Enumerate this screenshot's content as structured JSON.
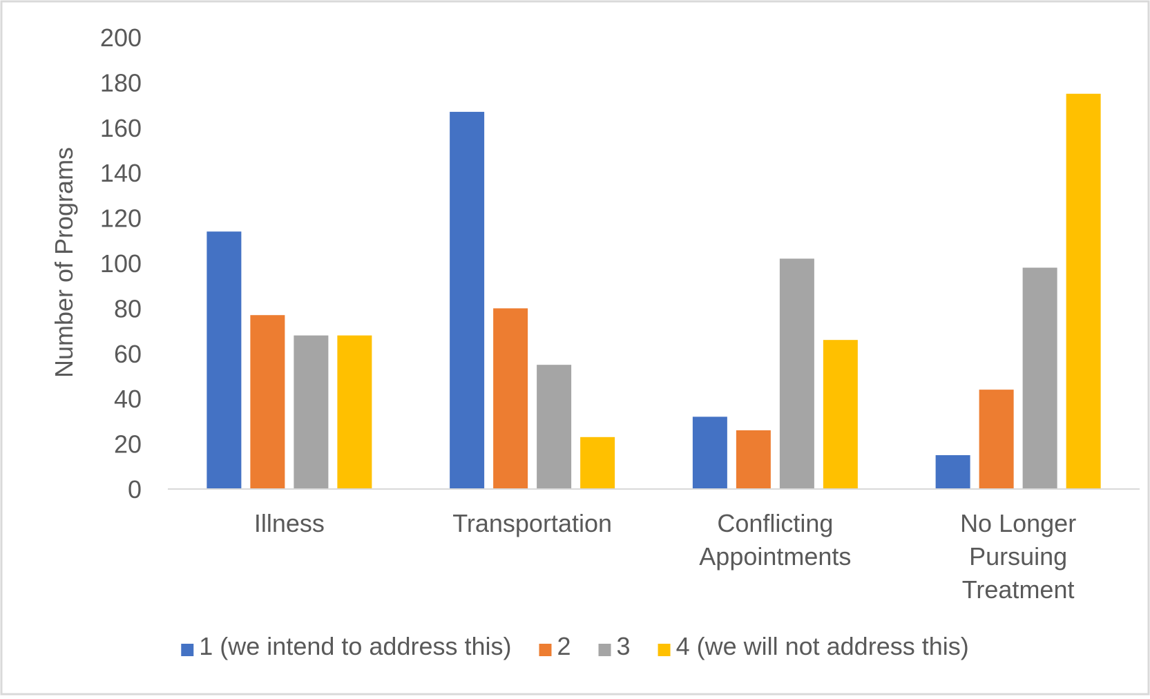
{
  "chart_data": {
    "type": "bar",
    "title": "",
    "xlabel": "",
    "ylabel": "Number of Programs",
    "ylim": [
      0,
      200
    ],
    "yticks": [
      0,
      20,
      40,
      60,
      80,
      100,
      120,
      140,
      160,
      180,
      200
    ],
    "grid": false,
    "legend_position": "bottom",
    "categories": [
      [
        "Illness"
      ],
      [
        "Transportation"
      ],
      [
        "Conflicting",
        "Appointments"
      ],
      [
        "No Longer",
        "Pursuing",
        "Treatment"
      ]
    ],
    "series": [
      {
        "name": "1 (we intend to address this)",
        "color": "#4472C4",
        "values": [
          114,
          167,
          32,
          15
        ]
      },
      {
        "name": "2",
        "color": "#ED7D31",
        "values": [
          77,
          80,
          26,
          44
        ]
      },
      {
        "name": "3",
        "color": "#A5A5A5",
        "values": [
          68,
          55,
          102,
          98
        ]
      },
      {
        "name": "4 (we will not address this)",
        "color": "#FFC000",
        "values": [
          68,
          23,
          66,
          175
        ]
      }
    ]
  }
}
